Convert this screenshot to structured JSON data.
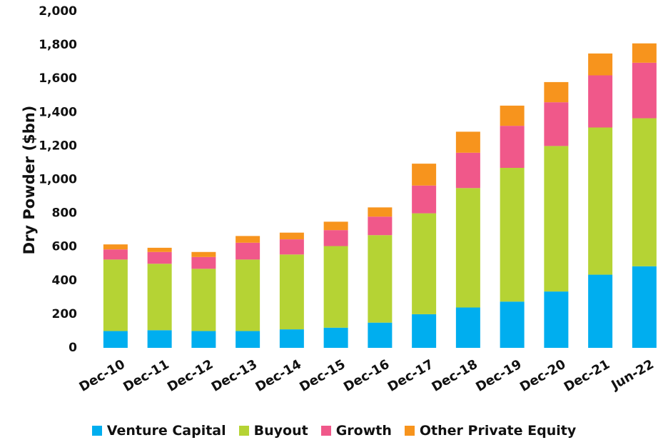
{
  "chart_data": {
    "type": "stacked_bar",
    "y_label": "Dry Powder ($bn)",
    "categories": [
      "Dec-10",
      "Dec-11",
      "Dec-12",
      "Dec-13",
      "Dec-14",
      "Dec-15",
      "Dec-16",
      "Dec-17",
      "Dec-18",
      "Dec-19",
      "Dec-20",
      "Dec-21",
      "Jun-22"
    ],
    "series": [
      {
        "name": "Venture Capital",
        "color": "#00aeef",
        "values": [
          100,
          105,
          100,
          100,
          110,
          120,
          150,
          200,
          240,
          275,
          335,
          435,
          485
        ]
      },
      {
        "name": "Buyout",
        "color": "#b5d334",
        "values": [
          425,
          395,
          370,
          425,
          445,
          485,
          520,
          600,
          710,
          795,
          865,
          875,
          880
        ]
      },
      {
        "name": "Growth",
        "color": "#f0588a",
        "values": [
          60,
          70,
          70,
          100,
          90,
          95,
          110,
          165,
          210,
          250,
          260,
          310,
          330
        ]
      },
      {
        "name": "Other Private Equity",
        "color": "#f7941d",
        "values": [
          30,
          25,
          30,
          40,
          40,
          50,
          55,
          130,
          125,
          120,
          120,
          130,
          115
        ]
      }
    ],
    "ylim": [
      0,
      2000
    ],
    "yticks": [
      0,
      200,
      400,
      600,
      800,
      {
        "value": 1000,
        "label": "1,000"
      },
      {
        "value": 1200,
        "label": "1,200"
      },
      {
        "value": 1400,
        "label": "1,400"
      },
      {
        "value": 1600,
        "label": "1,600"
      },
      {
        "value": 1800,
        "label": "1,800"
      },
      {
        "value": 2000,
        "label": "2,000"
      }
    ],
    "legend": "bottom"
  }
}
